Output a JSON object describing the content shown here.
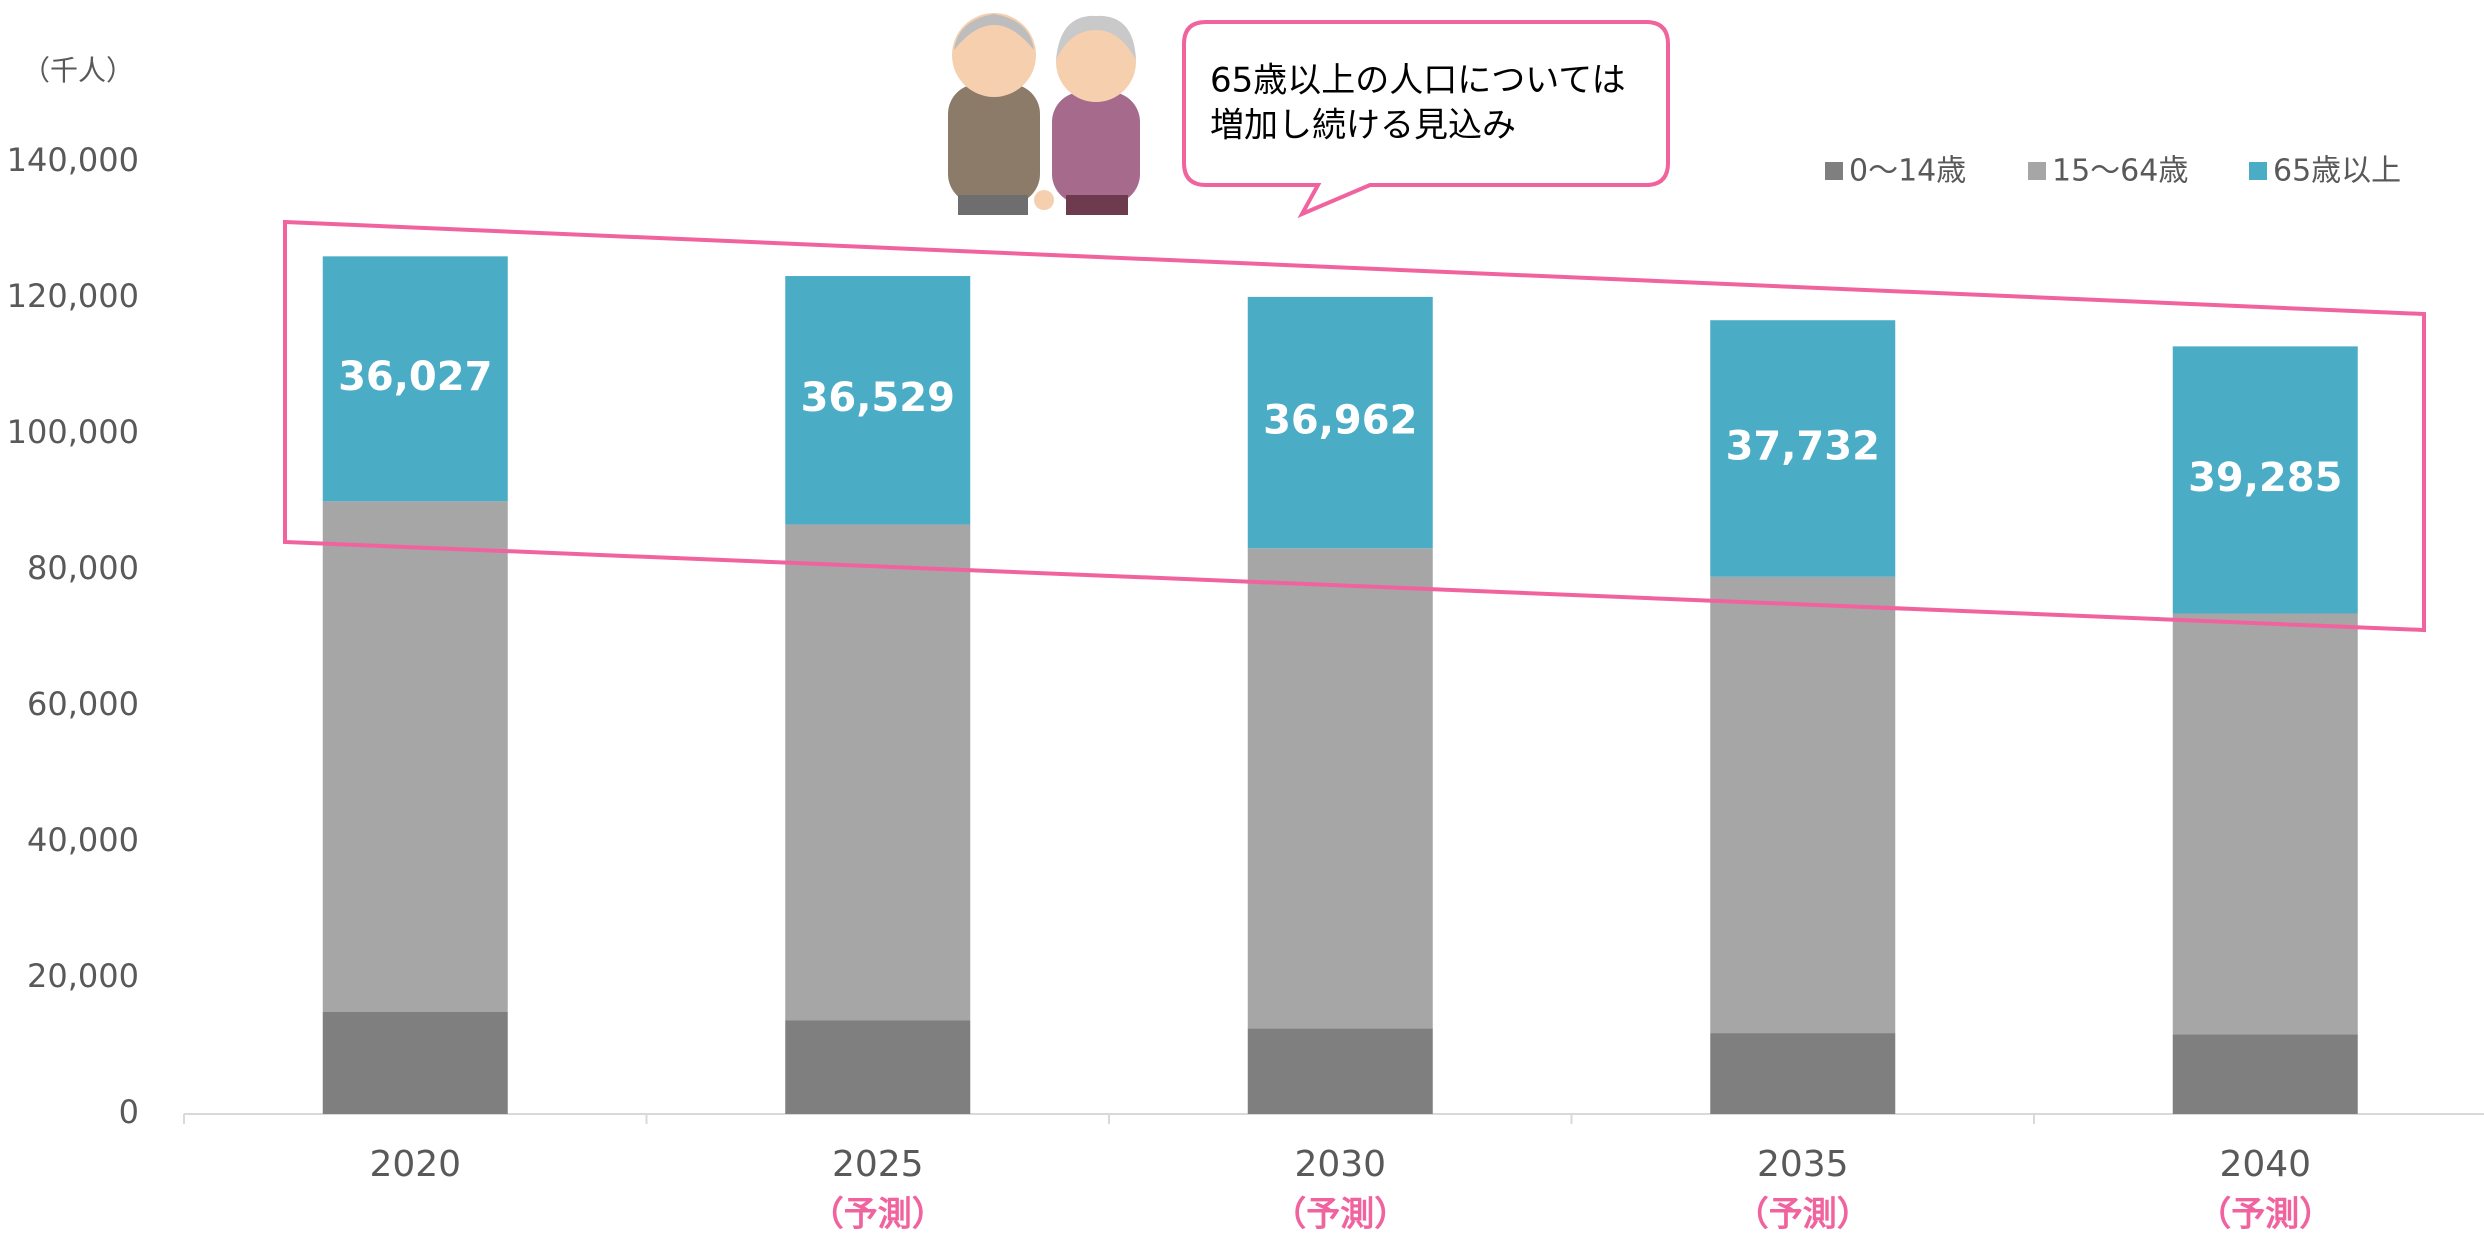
{
  "chart_data": {
    "type": "stacked_bar",
    "unit_label": "（千人）",
    "annotation": [
      "65歳以上の人口については",
      "増加し続ける見込み"
    ],
    "categories": [
      "2020",
      "2025",
      "2030",
      "2035",
      "2040"
    ],
    "category_notes": [
      null,
      "（予測）",
      "（予測）",
      "（予測）",
      "（予測）"
    ],
    "series": [
      {
        "name": "0～14歳",
        "color": "#7f7f7f",
        "values": [
          15000,
          13800,
          12600,
          11900,
          11700
        ]
      },
      {
        "name": "15～64歳",
        "color": "#a6a6a6",
        "values": [
          75100,
          72900,
          70600,
          67100,
          61900
        ]
      },
      {
        "name": "65歳以上",
        "color": "#4bacc6",
        "values": [
          36027,
          36529,
          36962,
          37732,
          39285
        ],
        "value_labels": [
          "36,027",
          "36,529",
          "36,962",
          "37,732",
          "39,285"
        ]
      }
    ],
    "ylim": [
      0,
      140000
    ],
    "yticks": [
      0,
      {
        "value": 20000,
        "label": "20,000"
      },
      {
        "value": 40000,
        "label": "40,000"
      },
      {
        "value": 60000,
        "label": "60,000"
      },
      {
        "value": 80000,
        "label": "80,000"
      },
      {
        "value": 100000,
        "label": "100,000"
      },
      {
        "value": 120000,
        "label": "120,000"
      },
      {
        "value": 140000,
        "label": "140,000"
      }
    ],
    "legend_position": "top-right"
  }
}
